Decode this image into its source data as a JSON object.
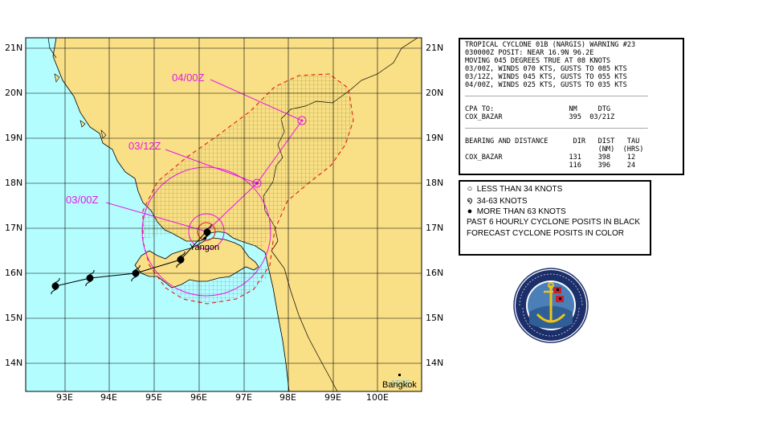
{
  "map": {
    "lat_labels": [
      "21N",
      "20N",
      "19N",
      "18N",
      "17N",
      "16N",
      "15N",
      "14N"
    ],
    "lon_labels": [
      "93E",
      "94E",
      "95E",
      "96E",
      "97E",
      "98E",
      "99E",
      "100E"
    ],
    "forecast_labels": [
      "04/00Z",
      "03/12Z",
      "03/00Z"
    ],
    "cities": [
      "Yangon",
      "Bangkok"
    ],
    "colors": {
      "land": "#f9df85",
      "sea": "#b3fdff",
      "forecast_track": "#e619e6",
      "danger_area": "#e41c1c",
      "storm_red": "#e41c1c"
    }
  },
  "warning": {
    "lines": [
      "TROPICAL CYCLONE 01B (NARGIS) WARNING #23",
      "030000Z POSIT: NEAR 16.9N 96.2E",
      "MOVING 045 DEGREES TRUE AT 08 KNOTS",
      "03/00Z, WINDS 070 KTS, GUSTS TO 085 KTS",
      "03/12Z, WINDS 045 KTS, GUSTS TO 055 KTS",
      "04/00Z, WINDS 025 KTS, GUSTS TO 035 KTS",
      "____________________________________________",
      "CPA TO:                  NM     DTG",
      "COX_BAZAR                395  03/21Z",
      "____________________________________________",
      "BEARING AND DISTANCE      DIR   DIST   TAU",
      "                                (NM)  (HRS)",
      "COX_BAZAR                131    398    12",
      "                         116    396    24"
    ]
  },
  "legend": {
    "less_than_34": "LESS THAN 34 KNOTS",
    "34_63": "34-63 KNOTS",
    "more_than_63": "MORE THAN 63 KNOTS",
    "past_positions": "PAST 6 HOURLY CYCLONE POSITS IN BLACK",
    "forecast_positions": "FORECAST CYCLONE POSITS IN COLOR"
  },
  "track": {
    "past_positions": [
      {
        "lat": 15.7,
        "lon": 92.8
      },
      {
        "lat": 15.9,
        "lon": 93.6
      },
      {
        "lat": 16.0,
        "lon": 94.6
      },
      {
        "lat": 16.3,
        "lon": 95.6
      },
      {
        "lat": 16.9,
        "lon": 96.2
      }
    ],
    "forecast_positions": [
      {
        "tau": "03/12Z",
        "lat": 18.0,
        "lon": 97.3
      },
      {
        "tau": "04/00Z",
        "lat": 19.4,
        "lon": 98.4
      }
    ]
  },
  "seal": {
    "name": "Joint Typhoon Warning Center seal"
  }
}
